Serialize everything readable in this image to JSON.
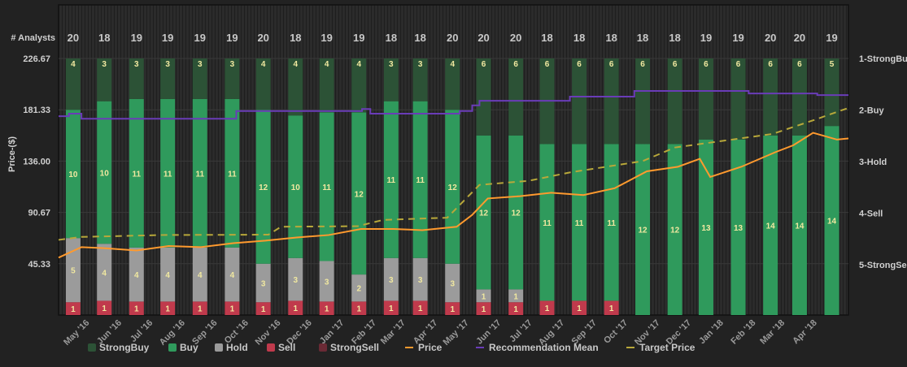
{
  "chart_data": {
    "type": "bar",
    "analysts_label": "# Analysts",
    "ylabel": "Price-($)",
    "y_ticks": [
      "45.33",
      "90.67",
      "136.00",
      "181.33",
      "226.67"
    ],
    "ylim": [
      0,
      226.67
    ],
    "y2_ticks": [
      "1-StrongBuy",
      "2-Buy",
      "3-Hold",
      "4-Sell",
      "5-StrongSell"
    ],
    "y2lim": [
      1,
      5
    ],
    "x_ticks": [
      "May '16",
      "Jun '16",
      "Jul '16",
      "Aug '16",
      "Sep '16",
      "Oct '16",
      "Nov '16",
      "Dec '16",
      "Jan '17",
      "Feb '17",
      "Mar '17",
      "Apr '17",
      "May '17",
      "Jun '17",
      "Jul '17",
      "Aug '17",
      "Sep '17",
      "Oct '17",
      "Nov '17",
      "Dec '17",
      "Jan '18",
      "Feb '18",
      "Mar '18",
      "Apr '18"
    ],
    "x_range": [
      "2016-04-01",
      "2018-05-01"
    ],
    "months": [
      "2016-04",
      "2016-05",
      "2016-06",
      "2016-07",
      "2016-08",
      "2016-09",
      "2016-10",
      "2016-11",
      "2016-12",
      "2017-01",
      "2017-02",
      "2017-03",
      "2017-04",
      "2017-05",
      "2017-06",
      "2017-07",
      "2017-08",
      "2017-09",
      "2017-10",
      "2017-11",
      "2017-12",
      "2018-01",
      "2018-02",
      "2018-03",
      "2018-04"
    ],
    "analysts": [
      20,
      18,
      19,
      19,
      19,
      19,
      20,
      18,
      19,
      19,
      18,
      18,
      20,
      20,
      20,
      18,
      18,
      18,
      18,
      18,
      19,
      19,
      20,
      20,
      19
    ],
    "series": [
      {
        "name": "StrongBuy",
        "color": "#2c5236",
        "values": [
          4,
          3,
          3,
          3,
          3,
          3,
          4,
          4,
          4,
          4,
          3,
          3,
          4,
          6,
          6,
          6,
          6,
          6,
          6,
          6,
          6,
          6,
          6,
          6,
          5
        ]
      },
      {
        "name": "Buy",
        "color": "#2f9a5c",
        "values": [
          10,
          10,
          11,
          11,
          11,
          11,
          12,
          10,
          11,
          12,
          11,
          11,
          12,
          12,
          12,
          11,
          11,
          11,
          12,
          12,
          13,
          13,
          14,
          14,
          14
        ]
      },
      {
        "name": "Hold",
        "color": "#9b9b9b",
        "values": [
          5,
          4,
          4,
          4,
          4,
          4,
          3,
          3,
          3,
          2,
          3,
          3,
          3,
          1,
          1,
          0,
          0,
          0,
          0,
          0,
          0,
          0,
          0,
          0,
          0
        ]
      },
      {
        "name": "Sell",
        "color": "#c03a4c",
        "values": [
          1,
          1,
          1,
          1,
          1,
          1,
          1,
          1,
          1,
          1,
          1,
          1,
          1,
          1,
          1,
          1,
          1,
          1,
          0,
          0,
          0,
          0,
          0,
          0,
          0
        ]
      },
      {
        "name": "StrongSell",
        "color": "#6a2a35",
        "values": [
          0,
          0,
          0,
          0,
          0,
          0,
          0,
          0,
          0,
          0,
          0,
          0,
          0,
          0,
          0,
          0,
          0,
          0,
          0,
          0,
          0,
          0,
          0,
          0,
          0
        ]
      }
    ],
    "lines": [
      {
        "name": "Price",
        "color": "#ff9a2e",
        "axis": "price",
        "style": "solid",
        "points": [
          [
            "2016-04-01",
            50.7
          ],
          [
            "2016-04-23",
            60
          ],
          [
            "2016-05-16",
            59
          ],
          [
            "2016-06-15",
            57
          ],
          [
            "2016-07-16",
            61
          ],
          [
            "2016-08-16",
            60
          ],
          [
            "2016-09-16",
            63.5
          ],
          [
            "2016-10-17",
            65.7
          ],
          [
            "2016-11-16",
            68.5
          ],
          [
            "2016-12-17",
            70.7
          ],
          [
            "2017-01-17",
            76
          ],
          [
            "2017-02-17",
            76
          ],
          [
            "2017-03-17",
            75
          ],
          [
            "2017-04-19",
            78
          ],
          [
            "2017-05-04",
            88.5
          ],
          [
            "2017-05-19",
            103
          ],
          [
            "2017-06-19",
            105
          ],
          [
            "2017-07-19",
            108
          ],
          [
            "2017-08-19",
            106
          ],
          [
            "2017-09-18",
            112
          ],
          [
            "2017-10-19",
            127
          ],
          [
            "2017-11-18",
            131
          ],
          [
            "2017-12-09",
            138
          ],
          [
            "2017-12-19",
            122
          ],
          [
            "2018-01-18",
            131
          ],
          [
            "2018-02-20",
            144
          ],
          [
            "2018-03-09",
            150
          ],
          [
            "2018-03-28",
            161
          ],
          [
            "2018-04-20",
            155
          ],
          [
            "2018-05-01",
            156
          ]
        ]
      },
      {
        "name": "Recommendation Mean",
        "color": "#6a3cb8",
        "axis": "rating",
        "style": "step",
        "points": [
          [
            "2016-04-01",
            2.12
          ],
          [
            "2016-04-11",
            2.07
          ],
          [
            "2016-04-23",
            2.17
          ],
          [
            "2016-09-19",
            2.02
          ],
          [
            "2017-01-18",
            1.98
          ],
          [
            "2017-01-26",
            2.07
          ],
          [
            "2017-04-22",
            2.02
          ],
          [
            "2017-05-04",
            1.91
          ],
          [
            "2017-05-11",
            1.82
          ],
          [
            "2017-08-06",
            1.74
          ],
          [
            "2017-10-07",
            1.63
          ],
          [
            "2018-01-25",
            1.68
          ],
          [
            "2018-04-01",
            1.71
          ],
          [
            "2018-05-01",
            1.71
          ]
        ]
      },
      {
        "name": "Target Price",
        "color": "#b8a83a",
        "axis": "price",
        "style": "dashed",
        "points": [
          [
            "2016-04-01",
            66.4
          ],
          [
            "2016-04-23",
            69
          ],
          [
            "2016-07-10",
            70.7
          ],
          [
            "2016-10-20",
            71
          ],
          [
            "2016-11-01",
            78
          ],
          [
            "2017-01-14",
            78.5
          ],
          [
            "2017-02-07",
            84
          ],
          [
            "2017-04-10",
            86
          ],
          [
            "2017-05-11",
            115
          ],
          [
            "2017-06-27",
            118.5
          ],
          [
            "2017-08-06",
            126
          ],
          [
            "2017-10-15",
            136
          ],
          [
            "2017-11-15",
            148
          ],
          [
            "2018-02-17",
            160
          ],
          [
            "2018-03-28",
            172
          ],
          [
            "2018-05-01",
            183
          ]
        ]
      }
    ],
    "legend_position": "bottom",
    "grid": true
  }
}
